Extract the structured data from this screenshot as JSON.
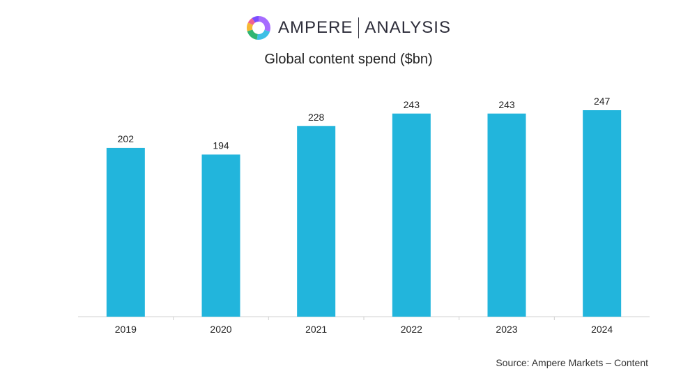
{
  "brand": {
    "name": "AMPERE",
    "division": "ANALYSIS",
    "logo_icon": "donut-ring-icon",
    "logo_colors": [
      "#a66cff",
      "#3dbfe6",
      "#2fb573",
      "#f7b733",
      "#f06292",
      "#7c4dff"
    ]
  },
  "chart_data": {
    "type": "bar",
    "title": "Global content spend ($bn)",
    "categories": [
      "2019",
      "2020",
      "2021",
      "2022",
      "2023",
      "2024"
    ],
    "values": [
      202,
      194,
      228,
      243,
      243,
      247
    ],
    "ylim": [
      0,
      247
    ],
    "xlabel": "",
    "ylabel": "",
    "grid": false,
    "legend": "none",
    "bar_color": "#22b5dc",
    "axis_color": "#d0d0d0"
  },
  "source": "Source: Ampere Markets – Content"
}
